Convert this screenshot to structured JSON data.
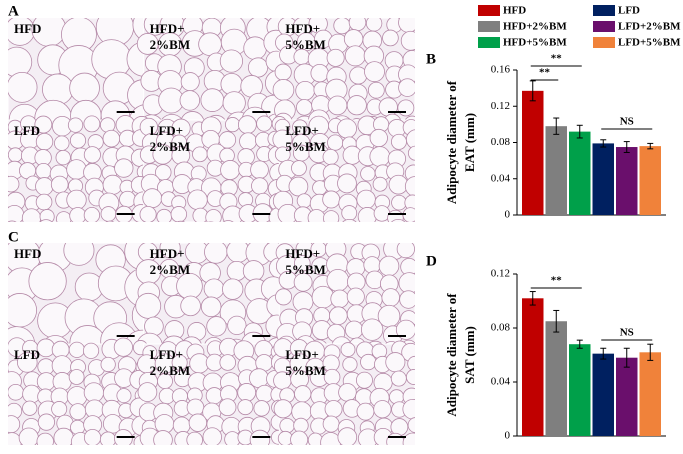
{
  "panels": {
    "A": "A",
    "B": "B",
    "C": "C",
    "D": "D"
  },
  "histology": [
    {
      "tiles": [
        [
          "HFD"
        ],
        [
          "HFD+",
          "2%BM"
        ],
        [
          "HFD+",
          "5%BM"
        ],
        [
          "LFD"
        ],
        [
          "LFD+",
          "2%BM"
        ],
        [
          "LFD+",
          "5%BM"
        ]
      ]
    },
    {
      "tiles": [
        [
          "HFD"
        ],
        [
          "HFD+",
          "2%BM"
        ],
        [
          "HFD+",
          "5%BM"
        ],
        [
          "LFD"
        ],
        [
          "LFD+",
          "2%BM"
        ],
        [
          "LFD+",
          "5%BM"
        ]
      ]
    }
  ],
  "legend": {
    "entries": [
      {
        "name": "HFD",
        "color": "#c00000"
      },
      {
        "name": "HFD+2%BM",
        "color": "#7f7f7f"
      },
      {
        "name": "HFD+5%BM",
        "color": "#00a04a"
      },
      {
        "name": "LFD",
        "color": "#002060"
      },
      {
        "name": "LFD+2%BM",
        "color": "#6a0f6c"
      },
      {
        "name": "LFD+5%BM",
        "color": "#f0823a"
      }
    ]
  },
  "chart_data": [
    {
      "type": "bar",
      "y_label": [
        "Adipocyte diameter of",
        "EAT (mm)"
      ],
      "values": [
        0.137,
        0.098,
        0.092,
        0.079,
        0.075,
        0.076
      ],
      "errors": [
        0.011,
        0.009,
        0.007,
        0.004,
        0.006,
        0.003
      ],
      "ylim": [
        0,
        0.16
      ],
      "yticks": [
        0,
        0.04,
        0.08,
        0.12,
        0.16
      ],
      "annotations": [
        "**",
        "**",
        "NS"
      ]
    },
    {
      "type": "bar",
      "y_label": [
        "Adipocyte diameter of",
        "SAT (mm)"
      ],
      "values": [
        0.102,
        0.085,
        0.068,
        0.061,
        0.058,
        0.062
      ],
      "errors": [
        0.005,
        0.008,
        0.003,
        0.004,
        0.007,
        0.006
      ],
      "ylim": [
        0,
        0.12
      ],
      "yticks": [
        0,
        0.04,
        0.08,
        0.12
      ],
      "annotations": [
        "**",
        "NS"
      ]
    }
  ]
}
